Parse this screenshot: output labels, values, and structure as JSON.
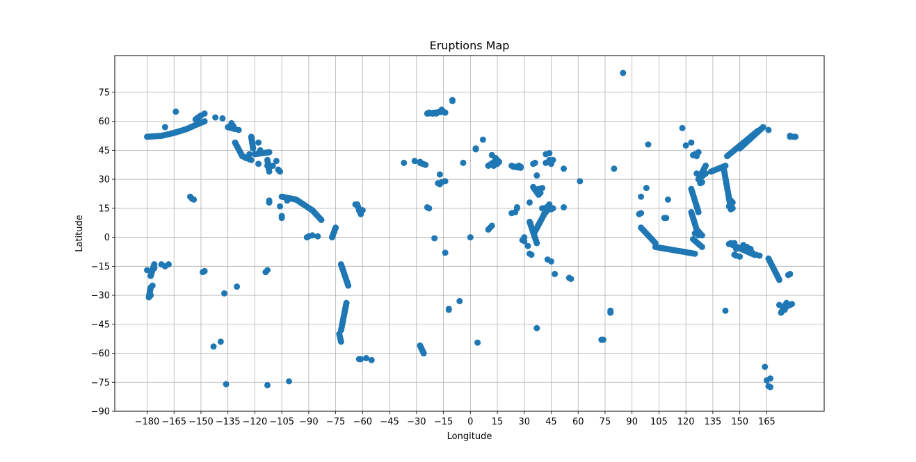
{
  "chart_data": {
    "type": "scatter",
    "title": "Eruptions Map",
    "xlabel": "Longitude",
    "ylabel": "Latitude",
    "xlim": [
      -198,
      197
    ],
    "ylim": [
      -90,
      94
    ],
    "xticks": [
      -180,
      -165,
      -150,
      -135,
      -120,
      -105,
      -90,
      -75,
      -60,
      -45,
      -30,
      -15,
      0,
      15,
      30,
      45,
      60,
      75,
      90,
      105,
      120,
      135,
      150,
      165
    ],
    "xtick_labels": [
      "−180",
      "−165",
      "−150",
      "−135",
      "−120",
      "−105",
      "−90",
      "−75",
      "−60",
      "−45",
      "−30",
      "−15",
      "0",
      "15",
      "30",
      "45",
      "60",
      "75",
      "90",
      "105",
      "120",
      "135",
      "150",
      "165"
    ],
    "yticks": [
      -90,
      -75,
      -60,
      -45,
      -30,
      -15,
      0,
      15,
      30,
      45,
      60,
      75
    ],
    "ytick_labels": [
      "−90",
      "−75",
      "−60",
      "−45",
      "−30",
      "−15",
      "0",
      "15",
      "30",
      "45",
      "60",
      "75"
    ],
    "grid": true,
    "marker_color": "#1f77b4",
    "chains": [
      [
        [
          -180,
          52
        ],
        [
          -172,
          52.5
        ],
        [
          -165,
          54
        ],
        [
          -158,
          56
        ],
        [
          -152,
          58.5
        ],
        [
          -148,
          60
        ]
      ],
      [
        [
          -153,
          61
        ],
        [
          -150,
          63
        ]
      ],
      [
        [
          -135,
          57
        ],
        [
          -131,
          56
        ]
      ],
      [
        [
          -131,
          49
        ],
        [
          -127,
          42
        ],
        [
          -122,
          40
        ]
      ],
      [
        [
          -122,
          52
        ],
        [
          -121,
          46
        ]
      ],
      [
        [
          -120,
          43
        ],
        [
          -112,
          44
        ]
      ],
      [
        [
          -113,
          40
        ],
        [
          -112,
          34
        ]
      ],
      [
        [
          -107,
          35
        ],
        [
          -106,
          34
        ]
      ],
      [
        [
          -105,
          21
        ],
        [
          -97,
          19.5
        ]
      ],
      [
        [
          -97,
          19.5
        ],
        [
          -88,
          14
        ],
        [
          -83,
          9
        ]
      ],
      [
        [
          -77,
          0
        ],
        [
          -75,
          5
        ]
      ],
      [
        [
          -72,
          -14
        ],
        [
          -68,
          -25
        ]
      ],
      [
        [
          -69,
          -34
        ],
        [
          -72,
          -48
        ]
      ],
      [
        [
          -73,
          -50
        ],
        [
          -72,
          -54
        ]
      ],
      [
        [
          -63,
          17
        ],
        [
          -61,
          12
        ]
      ],
      [
        [
          -176,
          -14
        ],
        [
          -178,
          -20
        ]
      ],
      [
        [
          -178,
          -26
        ],
        [
          -179,
          -31
        ]
      ],
      [
        [
          -24,
          64
        ],
        [
          -15,
          65
        ]
      ],
      [
        [
          -28,
          38.5
        ],
        [
          -25,
          37.5
        ]
      ],
      [
        [
          -28,
          -56
        ],
        [
          -26,
          -60
        ]
      ],
      [
        [
          10,
          37
        ],
        [
          15,
          40
        ]
      ],
      [
        [
          24,
          36.5
        ],
        [
          28,
          36
        ]
      ],
      [
        [
          36,
          3
        ],
        [
          44,
          17
        ]
      ],
      [
        [
          35,
          26
        ],
        [
          38,
          22
        ]
      ],
      [
        [
          33,
          8
        ],
        [
          37,
          -3
        ]
      ],
      [
        [
          143,
          42
        ],
        [
          160,
          55
        ]
      ],
      [
        [
          150,
          46
        ],
        [
          163,
          57
        ]
      ],
      [
        [
          141,
          36
        ],
        [
          145,
          15
        ]
      ],
      [
        [
          123,
          25
        ],
        [
          127,
          13
        ]
      ],
      [
        [
          123,
          13
        ],
        [
          127,
          1
        ]
      ],
      [
        [
          124,
          -1
        ],
        [
          129,
          -5
        ]
      ],
      [
        [
          95,
          5
        ],
        [
          103,
          -3
        ]
      ],
      [
        [
          103,
          -5
        ],
        [
          125,
          -8.5
        ]
      ],
      [
        [
          127,
          30
        ],
        [
          131,
          37
        ]
      ],
      [
        [
          146,
          -4
        ],
        [
          158,
          -9
        ]
      ],
      [
        [
          166,
          -11
        ],
        [
          172,
          -22
        ]
      ],
      [
        [
          176,
          -34
        ],
        [
          173,
          -39
        ]
      ],
      [
        [
          134,
          34
        ],
        [
          142,
          37
        ]
      ],
      [
        [
          128,
          31
        ],
        [
          131,
          33
        ]
      ]
    ],
    "points": [
      [
        -164,
        65
      ],
      [
        -170,
        57
      ],
      [
        -148,
        64
      ],
      [
        -142,
        62
      ],
      [
        -138,
        61.5
      ],
      [
        -133,
        59
      ],
      [
        -132,
        57.5
      ],
      [
        -129,
        55.5
      ],
      [
        -118,
        38
      ],
      [
        -113,
        37
      ],
      [
        -110,
        37
      ],
      [
        -125,
        41
      ],
      [
        -123,
        43
      ],
      [
        -108,
        39.5
      ],
      [
        -118,
        49
      ],
      [
        -117,
        45
      ],
      [
        -112,
        19
      ],
      [
        -112,
        18
      ],
      [
        -105,
        10
      ],
      [
        -105,
        11
      ],
      [
        -106,
        16
      ],
      [
        -102,
        19
      ],
      [
        -91,
        0
      ],
      [
        -90,
        0.5
      ],
      [
        -88,
        1
      ],
      [
        -85,
        0.5
      ],
      [
        -64,
        17
      ],
      [
        -62,
        14
      ],
      [
        -60,
        14
      ],
      [
        -155,
        20
      ],
      [
        -156,
        21
      ],
      [
        -154,
        19.5
      ],
      [
        -180,
        -17
      ],
      [
        -176,
        -16
      ],
      [
        -170,
        -15
      ],
      [
        -172,
        -14
      ],
      [
        -168,
        -14
      ],
      [
        -177,
        -25
      ],
      [
        -178,
        -30
      ],
      [
        -179,
        -31
      ],
      [
        -148,
        -17.5
      ],
      [
        -149,
        -18
      ],
      [
        -114,
        -18
      ],
      [
        -113,
        -17
      ],
      [
        -137,
        -29
      ],
      [
        -130,
        -25.5
      ],
      [
        -143,
        -56.5
      ],
      [
        -139,
        -54
      ],
      [
        -136,
        -76
      ],
      [
        -113,
        -76.5
      ],
      [
        -101,
        -74.5
      ],
      [
        -61,
        -63
      ],
      [
        -58,
        -62.5
      ],
      [
        -55,
        -63.5
      ],
      [
        -62,
        -63
      ],
      [
        -37,
        38.5
      ],
      [
        -31,
        39.5
      ],
      [
        -28,
        39
      ],
      [
        -23,
        15
      ],
      [
        -24,
        15.5
      ],
      [
        -19,
        64
      ],
      [
        -17,
        65
      ],
      [
        -16,
        66
      ],
      [
        -14,
        64.5
      ],
      [
        -21,
        64
      ],
      [
        -23,
        64.5
      ],
      [
        -10,
        71
      ],
      [
        -10,
        70.5
      ],
      [
        -18,
        28
      ],
      [
        -16,
        28.5
      ],
      [
        -14,
        29
      ],
      [
        -17,
        32.5
      ],
      [
        -17,
        27.5
      ],
      [
        -20,
        -0.5
      ],
      [
        -14,
        -8
      ],
      [
        -12,
        -37
      ],
      [
        -12,
        -37.5
      ],
      [
        -6,
        -33
      ],
      [
        0,
        0
      ],
      [
        3,
        45.5
      ],
      [
        3,
        46
      ],
      [
        4,
        -54.5
      ],
      [
        7,
        50.5
      ],
      [
        -4,
        38.5
      ],
      [
        10,
        4
      ],
      [
        11,
        5
      ],
      [
        12,
        6
      ],
      [
        14,
        41
      ],
      [
        15,
        38
      ],
      [
        16,
        39
      ],
      [
        13,
        37
      ],
      [
        12,
        42.5
      ],
      [
        23,
        37
      ],
      [
        25,
        36.5
      ],
      [
        28,
        36.5
      ],
      [
        27,
        37
      ],
      [
        23,
        12.5
      ],
      [
        25,
        13
      ],
      [
        26,
        15
      ],
      [
        26,
        15.5
      ],
      [
        29,
        -1.5
      ],
      [
        30,
        0
      ],
      [
        30,
        -2
      ],
      [
        32,
        -4.5
      ],
      [
        33,
        18
      ],
      [
        34,
        -9
      ],
      [
        33,
        -8.5
      ],
      [
        35,
        38
      ],
      [
        36,
        38.5
      ],
      [
        37,
        32
      ],
      [
        38,
        25
      ],
      [
        40,
        25.5
      ],
      [
        39,
        23
      ],
      [
        40,
        15
      ],
      [
        42,
        13
      ],
      [
        43,
        14
      ],
      [
        41,
        12
      ],
      [
        41,
        15
      ],
      [
        43,
        16
      ],
      [
        46,
        15
      ],
      [
        45,
        14.5
      ],
      [
        42,
        43
      ],
      [
        44,
        43.5
      ],
      [
        44,
        40
      ],
      [
        42,
        38.5
      ],
      [
        45,
        38
      ],
      [
        46,
        40
      ],
      [
        43,
        -11.5
      ],
      [
        45,
        -12.5
      ],
      [
        47,
        -19
      ],
      [
        52,
        35.5
      ],
      [
        52,
        15.5
      ],
      [
        55,
        -21
      ],
      [
        56,
        -21.5
      ],
      [
        37,
        -47
      ],
      [
        61,
        29
      ],
      [
        73,
        -53
      ],
      [
        74,
        -53
      ],
      [
        78,
        -38
      ],
      [
        78,
        -39
      ],
      [
        80,
        35.5
      ],
      [
        85,
        85
      ],
      [
        94,
        12
      ],
      [
        95,
        12.5
      ],
      [
        95,
        21
      ],
      [
        98,
        25.5
      ],
      [
        99,
        48
      ],
      [
        108,
        10
      ],
      [
        109,
        10
      ],
      [
        110,
        19.5
      ],
      [
        118,
        56.5
      ],
      [
        120,
        47.5
      ],
      [
        123,
        49
      ],
      [
        124,
        42.5
      ],
      [
        125,
        43
      ],
      [
        126,
        42
      ],
      [
        126,
        33
      ],
      [
        128,
        28
      ],
      [
        129,
        28.5
      ],
      [
        127,
        44
      ],
      [
        128,
        2
      ],
      [
        127,
        3
      ],
      [
        125,
        2
      ],
      [
        129,
        1
      ],
      [
        142,
        -38
      ],
      [
        144,
        -3.5
      ],
      [
        145,
        -3
      ],
      [
        147,
        -3
      ],
      [
        148,
        -6
      ],
      [
        147,
        -9
      ],
      [
        148,
        -9.5
      ],
      [
        150,
        -10
      ],
      [
        152,
        -4
      ],
      [
        154,
        -5
      ],
      [
        156,
        -6
      ],
      [
        157,
        -8
      ],
      [
        159,
        -9
      ],
      [
        161,
        -9.5
      ],
      [
        166,
        55.5
      ],
      [
        164,
        -67
      ],
      [
        165,
        -74
      ],
      [
        167,
        -73
      ],
      [
        166,
        -77
      ],
      [
        167,
        -77.5
      ],
      [
        178,
        -19
      ],
      [
        177,
        -19.5
      ],
      [
        175,
        -37.5
      ],
      [
        176,
        -36
      ],
      [
        178,
        -35
      ],
      [
        179,
        -34.5
      ],
      [
        172,
        -35
      ],
      [
        178,
        52
      ],
      [
        180,
        52
      ],
      [
        178,
        52.5
      ],
      [
        181,
        52
      ],
      [
        144,
        16
      ],
      [
        145,
        17
      ],
      [
        146,
        18
      ],
      [
        145,
        19
      ],
      [
        144,
        20
      ],
      [
        145,
        14.5
      ],
      [
        146,
        15
      ]
    ]
  }
}
